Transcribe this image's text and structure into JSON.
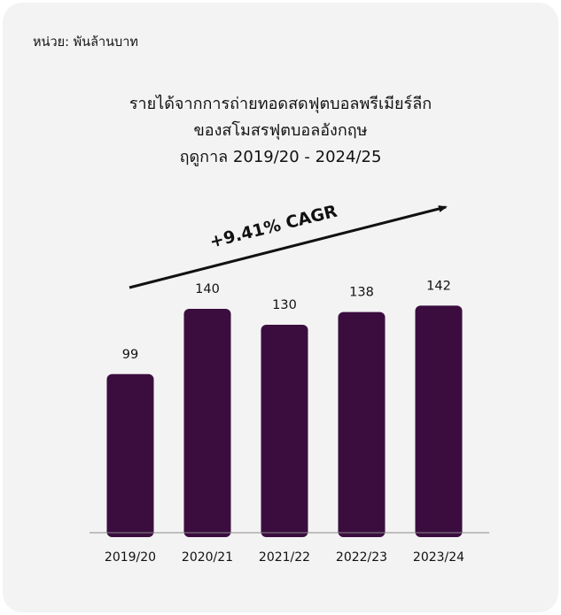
{
  "unit_label": "หน่วย: พันล้านบาท",
  "title_lines": [
    "รายได้จากการถ่ายทอดสดฟุตบอลพรีเมียร์ลีก",
    "ของสโมสรฟุตบอลอังกฤษ",
    "ฤดูกาล 2019/20 - 2024/25"
  ],
  "colors": {
    "bar": "#3b0d3f",
    "card_background": "#f3f3f3",
    "axis": "#888888",
    "text": "#111111",
    "arrow": "#111111"
  },
  "chart_data": {
    "type": "bar",
    "categories": [
      "2019/20",
      "2020/21",
      "2021/22",
      "2022/23",
      "2023/24"
    ],
    "values": [
      99,
      140,
      130,
      138,
      142
    ],
    "ylim": [
      0,
      150
    ],
    "grid": false,
    "legend": "none",
    "annotation": "+9.41% CAGR"
  }
}
